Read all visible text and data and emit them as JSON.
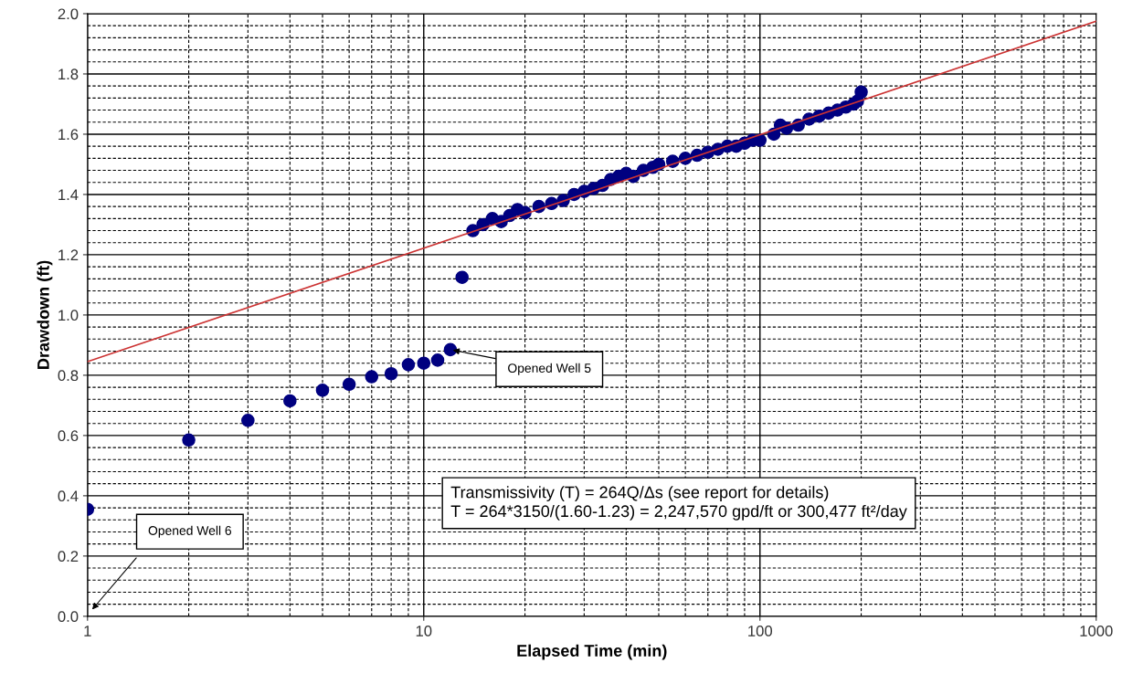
{
  "chart_data": {
    "type": "scatter",
    "xlabel": "Elapsed Time (min)",
    "ylabel": "Drawdown (ft)",
    "log": "x",
    "xlim": [
      1,
      1000
    ],
    "xticks": [
      1,
      10,
      100,
      1000
    ],
    "ylim": [
      0,
      2.0
    ],
    "yticks": [
      {
        "value": 0,
        "label": "0.0"
      },
      {
        "value": 0.2,
        "label": "0.2"
      },
      {
        "value": 0.4,
        "label": "0.4"
      },
      {
        "value": 0.6,
        "label": "0.6"
      },
      {
        "value": 0.8,
        "label": "0.8"
      },
      {
        "value": 1.0,
        "label": "1.0"
      },
      {
        "value": 1.2,
        "label": "1.2"
      },
      {
        "value": 1.4,
        "label": "1.4"
      },
      {
        "value": 1.6,
        "label": "1.6"
      },
      {
        "value": 1.8,
        "label": "1.8"
      },
      {
        "value": 2.0,
        "label": "2.0"
      }
    ],
    "grid": true,
    "legend": false,
    "series": [
      {
        "marker": "circle",
        "color": "#000080",
        "x": [
          1,
          2,
          3,
          4,
          5,
          6,
          7,
          8,
          9,
          10,
          11,
          12,
          13,
          14,
          15,
          16,
          17,
          18,
          19,
          20,
          22,
          24,
          26,
          28,
          30,
          32,
          34,
          36,
          38,
          40,
          42,
          45,
          48,
          50,
          55,
          60,
          65,
          70,
          75,
          80,
          85,
          90,
          95,
          100,
          110,
          115,
          120,
          130,
          140,
          150,
          160,
          170,
          180,
          190,
          195,
          200
        ],
        "values": [
          0.355,
          0.585,
          0.65,
          0.715,
          0.75,
          0.77,
          0.795,
          0.805,
          0.835,
          0.84,
          0.85,
          0.885,
          1.125,
          1.28,
          1.3,
          1.32,
          1.31,
          1.33,
          1.35,
          1.34,
          1.36,
          1.37,
          1.38,
          1.4,
          1.41,
          1.42,
          1.43,
          1.45,
          1.46,
          1.47,
          1.46,
          1.48,
          1.49,
          1.5,
          1.51,
          1.52,
          1.53,
          1.54,
          1.55,
          1.56,
          1.56,
          1.57,
          1.58,
          1.58,
          1.6,
          1.63,
          1.62,
          1.63,
          1.65,
          1.66,
          1.67,
          1.68,
          1.69,
          1.7,
          1.71,
          1.74
        ]
      },
      {
        "type": "line",
        "color": "#cc3333",
        "x": [
          1,
          1000
        ],
        "values": [
          0.845,
          1.975
        ]
      }
    ],
    "annotations": [
      {
        "text": "Opened Well 5",
        "x": 12,
        "y": 0.885
      },
      "Opened Well 6",
      "Transmissivity (T) = 264Q/Δs (see report for details)\nT = 264*3150/(1.60-1.23) = 2,247,570 gpd/ft or 300,477 ft²/day"
    ]
  }
}
